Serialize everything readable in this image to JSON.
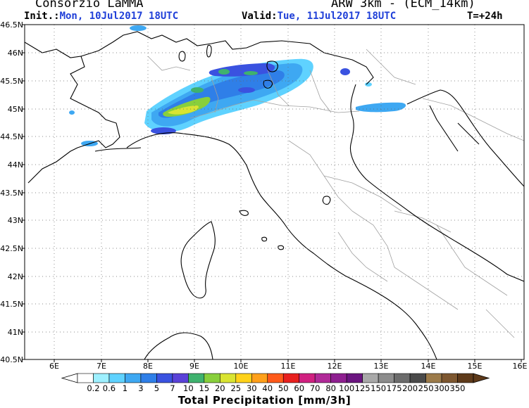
{
  "header": {
    "org": "Consorzio LaMMA",
    "model": "ARW 3km - (ECM_14km)",
    "init_label": "Init.:",
    "init_value": "Mon, 10Jul2017 18UTC",
    "valid_label": "Valid:",
    "valid_value": "Tue, 11Jul2017 18UTC",
    "lead": "T=+24h"
  },
  "axes": {
    "lat_labels": [
      "46.5N",
      "46N",
      "45.5N",
      "45N",
      "44.5N",
      "44N",
      "43.5N",
      "43N",
      "42.5N",
      "42N",
      "41.5N",
      "41N",
      "40.5N"
    ],
    "lon_labels": [
      "6E",
      "7E",
      "8E",
      "9E",
      "10E",
      "11E",
      "12E",
      "13E",
      "14E",
      "15E",
      "16E"
    ]
  },
  "colorbar": {
    "title": "Total Precipitation [mm/3h]",
    "levels": [
      "0.2",
      "0.6",
      "1",
      "3",
      "5",
      "7",
      "10",
      "15",
      "20",
      "25",
      "30",
      "40",
      "50",
      "60",
      "70",
      "80",
      "100",
      "125",
      "150",
      "175",
      "200",
      "250",
      "300",
      "350"
    ],
    "colors": [
      "#ffffff",
      "#9ef0ff",
      "#5fd2ff",
      "#3ea8f2",
      "#2f7fe8",
      "#3a52e0",
      "#5a42d8",
      "#3fb26e",
      "#88cf3c",
      "#d9e432",
      "#ffd21a",
      "#ffa01a",
      "#ff5a1a",
      "#e8201e",
      "#d02080",
      "#b02a98",
      "#8e1f90",
      "#6b1580",
      "#a9a9a9",
      "#8c8c8c",
      "#6c6c6c",
      "#4a4a4a",
      "#9c7b4a",
      "#7d5730",
      "#5e3a1a"
    ]
  }
}
